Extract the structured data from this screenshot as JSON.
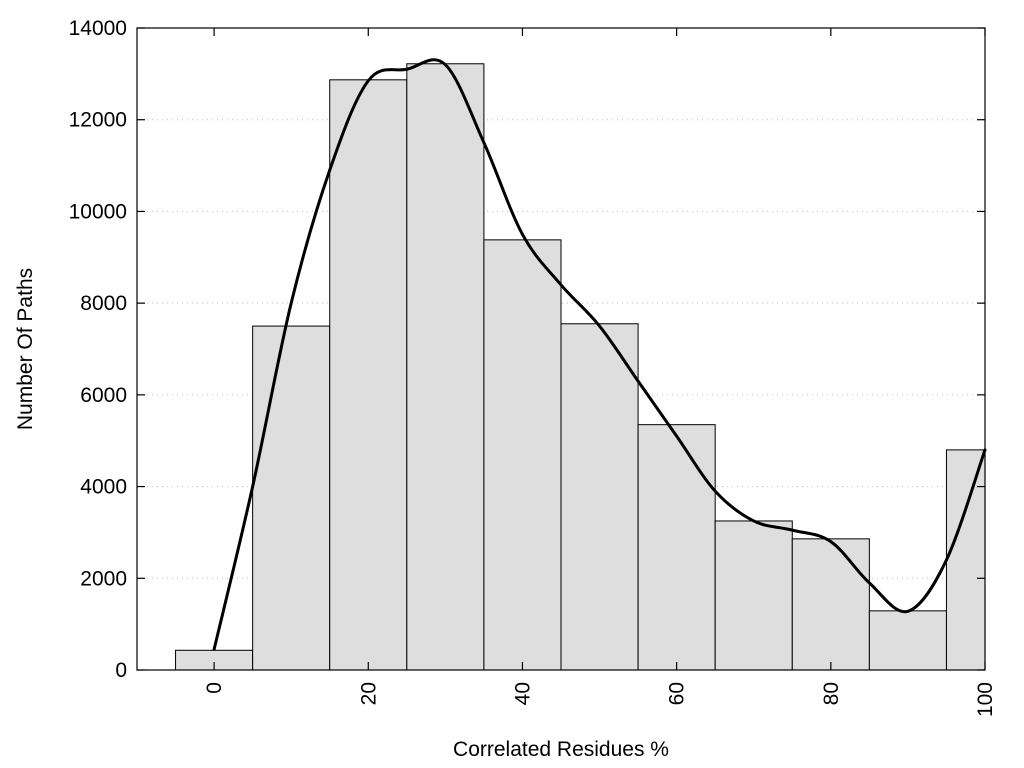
{
  "chart_data": {
    "type": "bar",
    "title": "",
    "xlabel": "Correlated Residues %",
    "ylabel": "Number Of Paths",
    "xlim": [
      -10,
      100
    ],
    "ylim": [
      0,
      14000
    ],
    "x_ticks": [
      0,
      20,
      40,
      60,
      80,
      100
    ],
    "y_ticks": [
      0,
      2000,
      4000,
      6000,
      8000,
      10000,
      12000,
      14000
    ],
    "grid": "horizontal dotted",
    "bin_width": 10,
    "categories": [
      0,
      10,
      20,
      30,
      40,
      50,
      60,
      70,
      80,
      90,
      100
    ],
    "values": [
      430,
      7500,
      12870,
      13220,
      9380,
      7550,
      5350,
      3250,
      2860,
      1290,
      4800
    ],
    "bar_color": "#dedede",
    "curve": {
      "type": "line",
      "x": [
        0,
        5,
        10,
        15,
        20,
        25,
        30,
        35,
        40,
        45,
        50,
        55,
        60,
        65,
        70,
        75,
        80,
        85,
        90,
        95,
        100
      ],
      "y": [
        450,
        4000,
        8000,
        10900,
        12850,
        13100,
        13200,
        11500,
        9500,
        8400,
        7500,
        6300,
        5100,
        3900,
        3250,
        3050,
        2800,
        1900,
        1280,
        2400,
        4800
      ],
      "color": "#000000"
    }
  }
}
